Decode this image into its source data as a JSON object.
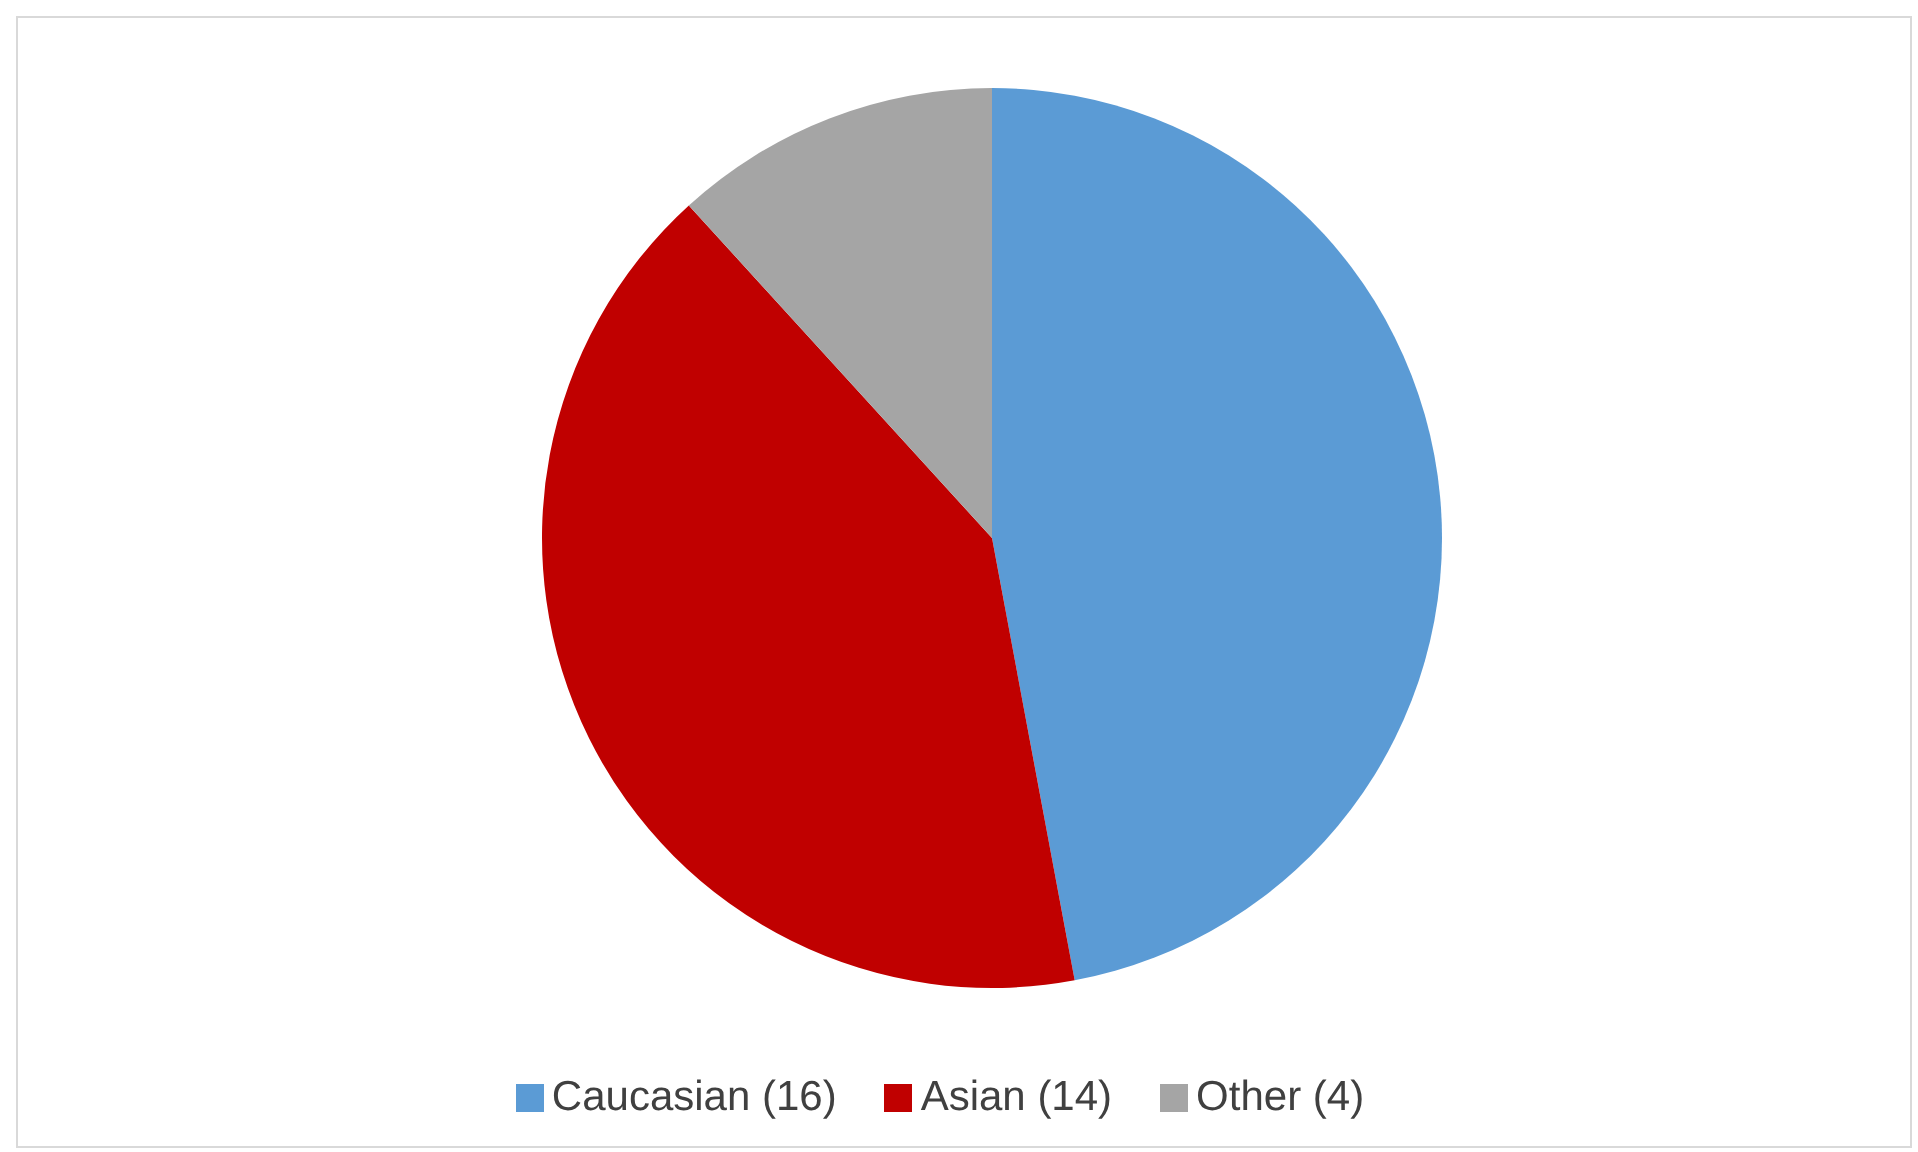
{
  "chart_data": {
    "type": "pie",
    "categories": [
      "Caucasian (16)",
      "Asian (14)",
      "Other (4)"
    ],
    "values": [
      16,
      14,
      4
    ],
    "colors": [
      "#5b9bd5",
      "#c00000",
      "#a5a5a5"
    ],
    "legend": "bottom"
  }
}
